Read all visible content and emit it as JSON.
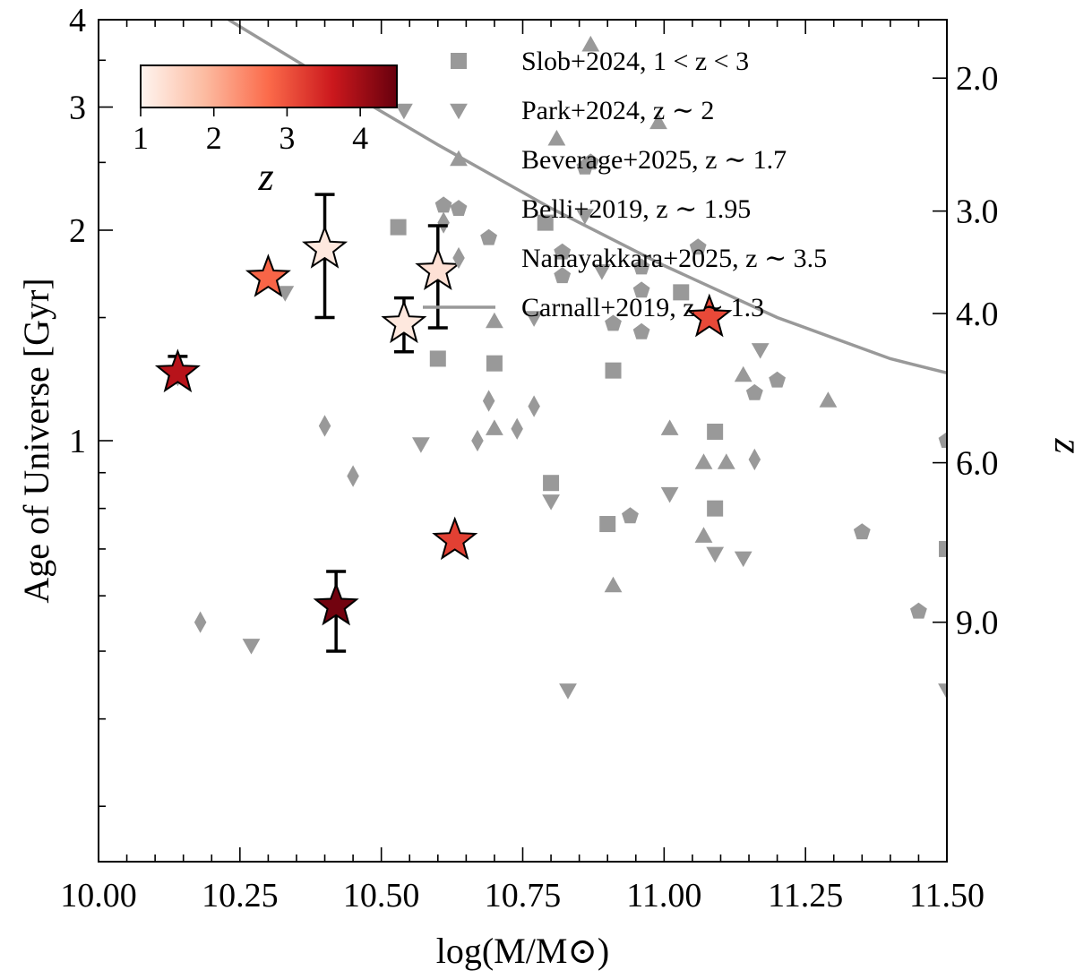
{
  "chart_data": {
    "type": "scatter",
    "xlabel": "log(M/M⊙)",
    "ylabel": "Age of Universe [Gyr]",
    "y2label": "z",
    "xlim": [
      10.0,
      11.5
    ],
    "ylim": [
      0.25,
      4.0
    ],
    "yscale": "log",
    "xticks": [
      "10.00",
      "10.25",
      "10.50",
      "10.75",
      "11.00",
      "11.25",
      "11.50"
    ],
    "yticks": [
      "1",
      "2",
      "3",
      "4"
    ],
    "y2ticks": [
      {
        "label": "2.0",
        "age": 3.3
      },
      {
        "label": "3.0",
        "age": 2.13
      },
      {
        "label": "4.0",
        "age": 1.52
      },
      {
        "label": "6.0",
        "age": 0.93
      },
      {
        "label": "9.0",
        "age": 0.55
      }
    ],
    "colorbar": {
      "label": "z",
      "ticks": [
        "1",
        "2",
        "3",
        "4"
      ],
      "range": [
        1.0,
        4.5
      ],
      "colors": [
        "#fff5f0",
        "#fcbba1",
        "#fb6a4a",
        "#cb181d",
        "#67000d"
      ]
    },
    "legend_position": "top-right",
    "series": [
      {
        "name": "Slob+2024, 1 < z < 3",
        "marker": "square",
        "color": "#999999",
        "points": [
          [
            10.53,
            2.02
          ],
          [
            10.79,
            2.05
          ],
          [
            10.6,
            1.31
          ],
          [
            10.7,
            1.29
          ],
          [
            10.91,
            1.26
          ],
          [
            11.03,
            1.63
          ],
          [
            11.09,
            1.03
          ],
          [
            10.8,
            0.87
          ],
          [
            10.9,
            0.76
          ],
          [
            11.09,
            0.8
          ],
          [
            11.5,
            0.7
          ]
        ]
      },
      {
        "name": "Park+2024, z ∼ 2",
        "marker": "triangle-down",
        "color": "#999999",
        "points": [
          [
            10.54,
            2.97
          ],
          [
            10.86,
            2.1
          ],
          [
            10.33,
            1.63
          ],
          [
            10.77,
            1.5
          ],
          [
            10.89,
            1.75
          ],
          [
            10.57,
            0.99
          ],
          [
            10.8,
            0.82
          ],
          [
            11.01,
            0.84
          ],
          [
            11.17,
            1.35
          ],
          [
            11.09,
            0.69
          ],
          [
            11.14,
            0.68
          ],
          [
            10.27,
            0.51
          ],
          [
            10.83,
            0.44
          ],
          [
            11.5,
            0.44
          ]
        ]
      },
      {
        "name": "Beverage+2025, z ∼ 1.7",
        "marker": "triangle-up",
        "color": "#999999",
        "points": [
          [
            10.87,
            3.68
          ],
          [
            10.81,
            2.7
          ],
          [
            10.99,
            2.85
          ],
          [
            10.7,
            1.48
          ],
          [
            10.7,
            1.04
          ],
          [
            11.01,
            1.04
          ],
          [
            11.07,
            0.93
          ],
          [
            11.07,
            0.73
          ],
          [
            11.11,
            0.93
          ],
          [
            11.14,
            1.24
          ],
          [
            11.29,
            1.14
          ],
          [
            10.91,
            0.62
          ]
        ]
      },
      {
        "name": "Belli+2019, z ∼ 1.95",
        "marker": "pentagon",
        "color": "#999999",
        "points": [
          [
            10.61,
            2.17
          ],
          [
            10.69,
            1.95
          ],
          [
            10.82,
            1.86
          ],
          [
            10.82,
            1.72
          ],
          [
            10.86,
            2.46
          ],
          [
            10.87,
            2.5
          ],
          [
            10.91,
            1.47
          ],
          [
            10.96,
            1.77
          ],
          [
            10.96,
            1.64
          ],
          [
            10.96,
            1.43
          ],
          [
            11.06,
            1.89
          ],
          [
            11.16,
            1.17
          ],
          [
            11.2,
            1.22
          ],
          [
            10.94,
            0.78
          ],
          [
            11.35,
            0.74
          ],
          [
            11.45,
            0.57
          ],
          [
            11.5,
            1.0
          ]
        ]
      },
      {
        "name": "Nanayakkara+2025, z ∼ 3.5",
        "marker": "diamond",
        "color": "#999999",
        "points": [
          [
            10.14,
            1.24
          ],
          [
            10.18,
            0.55
          ],
          [
            10.4,
            1.05
          ],
          [
            10.45,
            0.89
          ],
          [
            10.61,
            2.05
          ],
          [
            10.67,
            1.0
          ],
          [
            10.69,
            1.14
          ],
          [
            10.74,
            1.04
          ],
          [
            10.77,
            1.12
          ],
          [
            11.16,
            0.94
          ]
        ]
      },
      {
        "name": "Carnall+2019, z ∼ 1.3",
        "marker": "line",
        "color": "#999999",
        "line_x": [
          10.23,
          10.4,
          10.6,
          10.8,
          11.0,
          11.2,
          11.4,
          11.5
        ],
        "line_y": [
          4.0,
          3.3,
          2.65,
          2.15,
          1.78,
          1.5,
          1.31,
          1.25
        ]
      },
      {
        "marker": "star",
        "points": [
          {
            "x": 10.14,
            "y": 1.25,
            "z": 3.8,
            "yerr": [
              1.23,
              1.32
            ]
          },
          {
            "x": 10.3,
            "y": 1.71,
            "z": 2.8
          },
          {
            "x": 10.4,
            "y": 1.88,
            "z": 1.2,
            "yerr": [
              1.5,
              2.25
            ]
          },
          {
            "x": 10.42,
            "y": 0.58,
            "z": 4.4,
            "yerr": [
              0.5,
              0.65
            ]
          },
          {
            "x": 10.54,
            "y": 1.47,
            "z": 1.2,
            "yerr": [
              1.34,
              1.6
            ]
          },
          {
            "x": 10.6,
            "y": 1.75,
            "z": 1.3,
            "yerr": [
              1.45,
              2.03
            ]
          },
          {
            "x": 10.63,
            "y": 0.72,
            "z": 3.2
          },
          {
            "x": 11.08,
            "y": 1.5,
            "z": 3.1
          }
        ]
      }
    ]
  }
}
